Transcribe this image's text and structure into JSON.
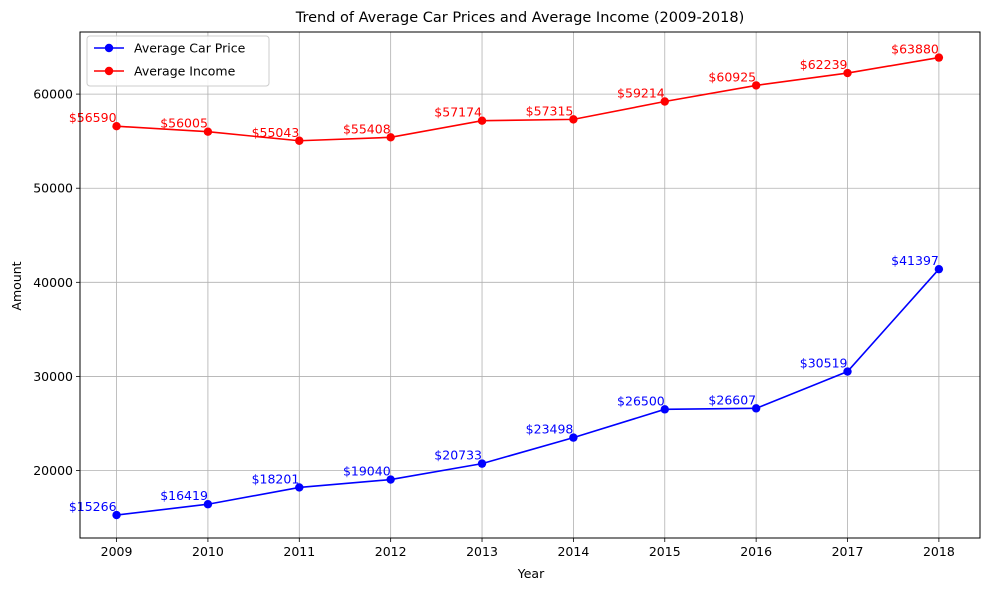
{
  "chart_data": {
    "type": "line",
    "title": "Trend of Average Car Prices and Average Income (2009-2018)",
    "xlabel": "Year",
    "ylabel": "Amount",
    "x": [
      2009,
      2010,
      2011,
      2012,
      2013,
      2014,
      2015,
      2016,
      2017,
      2018
    ],
    "xlim": [
      2008.6,
      2018.45
    ],
    "ylim": [
      12830,
      66600
    ],
    "yticks": [
      20000,
      30000,
      40000,
      50000,
      60000
    ],
    "grid": true,
    "legend_position": "top-left",
    "series": [
      {
        "name": "Average Car Price",
        "color": "#0000ff",
        "marker": "circle",
        "values": [
          15266,
          16419,
          18201,
          19040,
          20733,
          23498,
          26500,
          26607,
          30519,
          41397
        ],
        "labels": [
          "$15266",
          "$16419",
          "$18201",
          "$19040",
          "$20733",
          "$23498",
          "$26500",
          "$26607",
          "$30519",
          "$41397"
        ]
      },
      {
        "name": "Average Income",
        "color": "#ff0000",
        "marker": "circle",
        "values": [
          56590,
          56005,
          55043,
          55408,
          57174,
          57315,
          59214,
          60925,
          62239,
          63880
        ],
        "labels": [
          "$56590",
          "$56005",
          "$55043",
          "$55408",
          "$57174",
          "$57315",
          "$59214",
          "$60925",
          "$62239",
          "$63880"
        ]
      }
    ]
  }
}
